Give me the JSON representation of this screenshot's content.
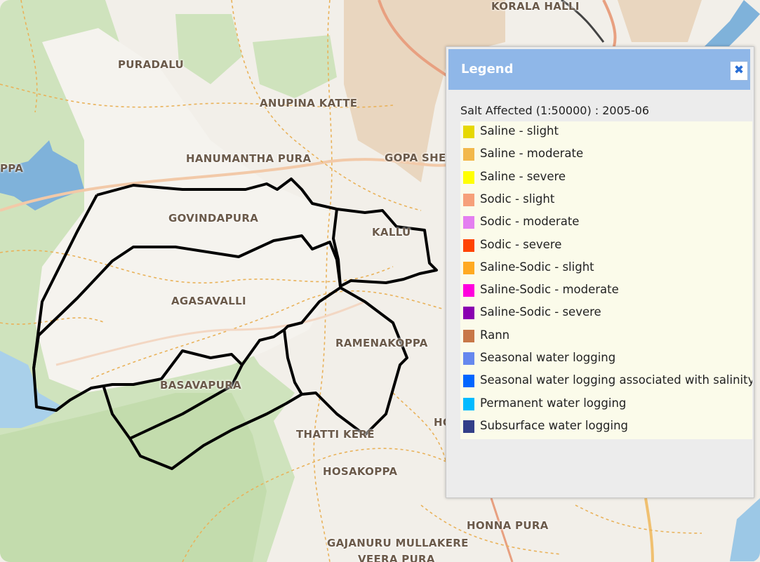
{
  "map": {
    "places": [
      {
        "id": "koralahalli",
        "label": "KORALA HALLI"
      },
      {
        "id": "puradalu",
        "label": "PURADALU"
      },
      {
        "id": "anupina-katte",
        "label": "ANUPINA KATTE"
      },
      {
        "id": "ppa",
        "label": "PPA"
      },
      {
        "id": "hanumantha-pura",
        "label": "HANUMANTHA PURA"
      },
      {
        "id": "gopa-she",
        "label": "GOPA SHE"
      },
      {
        "id": "govindapura",
        "label": "GOVINDAPURA"
      },
      {
        "id": "kallu",
        "label": "KALLU"
      },
      {
        "id": "agasavalli",
        "label": "AGASAVALLI"
      },
      {
        "id": "ramenakoppa",
        "label": "RAMENAKOPPA"
      },
      {
        "id": "basavapura",
        "label": "BASAVAPURA"
      },
      {
        "id": "thatti-kere",
        "label": "THATTI KERE"
      },
      {
        "id": "ho",
        "label": "HO"
      },
      {
        "id": "hosakoppa",
        "label": "HOSAKOPPA"
      },
      {
        "id": "honna-pura",
        "label": "HONNA PURA"
      },
      {
        "id": "gajanuru",
        "label": "GAJANURU MULLAKERE"
      },
      {
        "id": "veera-pura",
        "label": "VEERA PURA"
      }
    ]
  },
  "legend": {
    "title": "Legend",
    "close_icon": "close-icon",
    "close_glyph": "✖",
    "layer_title": "Salt Affected (1:50000) : 2005-06",
    "items": [
      {
        "label": "Saline - slight",
        "color": "#e6d800"
      },
      {
        "label": "Saline - moderate",
        "color": "#f2b84b"
      },
      {
        "label": "Saline - severe",
        "color": "#ffff00"
      },
      {
        "label": "Sodic - slight",
        "color": "#f6a07a"
      },
      {
        "label": "Sodic - moderate",
        "color": "#e47ff0"
      },
      {
        "label": "Sodic - severe",
        "color": "#ff4400"
      },
      {
        "label": "Saline-Sodic - slight",
        "color": "#ffaa22"
      },
      {
        "label": "Saline-Sodic - moderate",
        "color": "#ff00dd"
      },
      {
        "label": "Saline-Sodic - severe",
        "color": "#8a00b0"
      },
      {
        "label": "Rann",
        "color": "#c87848"
      },
      {
        "label": "Seasonal water logging",
        "color": "#6688ee"
      },
      {
        "label": "Seasonal water logging associated with salinity or",
        "color": "#0066ff"
      },
      {
        "label": "Permanent water logging",
        "color": "#00bbff"
      },
      {
        "label": "Subsurface water logging",
        "color": "#333f88"
      }
    ]
  }
}
